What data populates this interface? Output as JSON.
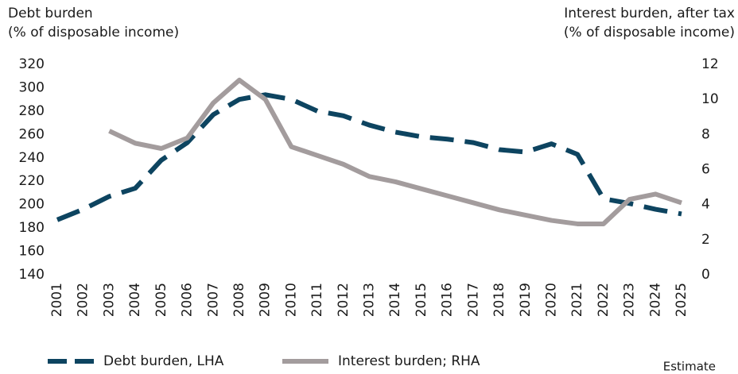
{
  "chart_data": {
    "type": "line",
    "ylabel": [
      "Debt burden",
      "(% of disposable income)"
    ],
    "y2label": [
      "Interest burden, after tax",
      "(% of disposable income)"
    ],
    "annotation": "Estimate",
    "categories": [
      "2001",
      "2002",
      "2003",
      "2004",
      "2005",
      "2006",
      "2007",
      "2008",
      "2009",
      "2010",
      "2011",
      "2012",
      "2013",
      "2014",
      "2015",
      "2016",
      "2017",
      "2018",
      "2019",
      "2020",
      "2021",
      "2022",
      "2023",
      "2024",
      "2025"
    ],
    "series": [
      {
        "name": "Debt burden, LHA",
        "color": "#0d4460",
        "dashed": true,
        "axis": "y",
        "values": [
          187,
          196,
          207,
          214,
          238,
          253,
          277,
          290,
          294,
          290,
          280,
          276,
          268,
          262,
          258,
          256,
          253,
          247,
          245,
          252,
          243,
          205,
          201,
          196,
          192
        ]
      },
      {
        "name": "Interest burden; RHA",
        "color": "#a39c9d",
        "dashed": false,
        "axis": "y2",
        "values": [
          null,
          null,
          8.2,
          7.5,
          7.2,
          7.8,
          9.8,
          11.1,
          10.0,
          7.3,
          6.8,
          6.3,
          5.6,
          5.3,
          4.9,
          4.5,
          4.1,
          3.7,
          3.4,
          3.1,
          2.9,
          2.9,
          4.3,
          4.6,
          4.1
        ]
      }
    ],
    "ylim": [
      140,
      320
    ],
    "yticks": [
      140,
      160,
      180,
      200,
      220,
      240,
      260,
      280,
      300,
      320
    ],
    "y2lim": [
      0,
      12
    ],
    "y2ticks": [
      0,
      2,
      4,
      6,
      8,
      10,
      12
    ]
  }
}
